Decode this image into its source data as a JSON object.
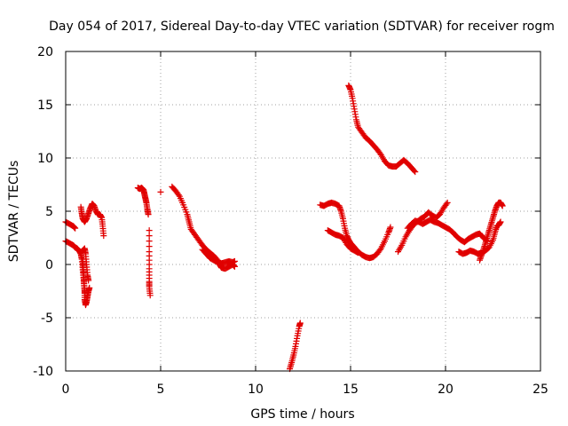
{
  "chart_data": {
    "type": "scatter",
    "title": "Day 054 of 2017, Sidereal Day-to-day VTEC variation (SDTVAR) for receiver rogm",
    "xlabel": "GPS time / hours",
    "ylabel": "SDTVAR / TECUs",
    "xlim": [
      0,
      25
    ],
    "ylim": [
      -10,
      20
    ],
    "x_ticks": [
      0,
      5,
      10,
      15,
      20,
      25
    ],
    "y_ticks": [
      -10,
      -5,
      0,
      5,
      10,
      15,
      20
    ],
    "x_tick_labels": [
      "0",
      "5",
      "10",
      "15",
      "20",
      "25"
    ],
    "y_tick_labels": [
      "-10",
      "-5",
      "0",
      "5",
      "10",
      "15",
      "20"
    ],
    "grid": true,
    "marker": "+",
    "series": [
      {
        "name": "SDTVAR",
        "color": "#e00000",
        "arcs": [
          [
            [
              0.0,
              4.0
            ],
            [
              0.2,
              3.8
            ],
            [
              0.4,
              3.6
            ],
            [
              0.5,
              3.4
            ]
          ],
          [
            [
              0.0,
              2.2
            ],
            [
              0.2,
              2.0
            ],
            [
              0.4,
              1.8
            ],
            [
              0.5,
              1.6
            ],
            [
              0.6,
              1.5
            ],
            [
              0.7,
              1.3
            ],
            [
              0.8,
              1.0
            ],
            [
              0.85,
              0.5
            ],
            [
              0.9,
              -0.5
            ],
            [
              0.95,
              -1.5
            ],
            [
              1.0,
              -2.5
            ],
            [
              1.0,
              -3.3
            ],
            [
              1.05,
              -3.8
            ],
            [
              1.1,
              -3.5
            ],
            [
              1.15,
              -3.0
            ],
            [
              1.2,
              -2.5
            ],
            [
              1.25,
              -2.2
            ]
          ],
          [
            [
              0.8,
              5.4
            ],
            [
              0.85,
              4.8
            ],
            [
              0.9,
              4.3
            ],
            [
              1.0,
              4.0
            ],
            [
              1.1,
              4.3
            ],
            [
              1.2,
              4.8
            ],
            [
              1.3,
              5.3
            ],
            [
              1.4,
              5.7
            ],
            [
              1.5,
              5.5
            ],
            [
              1.6,
              5.0
            ],
            [
              1.7,
              4.7
            ],
            [
              1.8,
              4.7
            ],
            [
              1.9,
              4.4
            ],
            [
              1.95,
              3.6
            ],
            [
              2.0,
              2.7
            ]
          ],
          [
            [
              0.9,
              1.3
            ],
            [
              1.0,
              1.5
            ],
            [
              1.05,
              1.0
            ],
            [
              1.1,
              0.0
            ],
            [
              1.15,
              -1.0
            ],
            [
              1.2,
              -1.5
            ]
          ],
          [
            [
              0.9,
              0.5
            ],
            [
              0.92,
              -0.3
            ],
            [
              0.95,
              -1.0
            ],
            [
              0.97,
              -1.8
            ],
            [
              1.0,
              -2.6
            ]
          ],
          [
            [
              3.8,
              7.2
            ],
            [
              3.9,
              7.1
            ],
            [
              4.0,
              7.2
            ],
            [
              4.1,
              7.0
            ],
            [
              4.15,
              6.6
            ],
            [
              4.2,
              6.2
            ],
            [
              4.25,
              5.8
            ],
            [
              4.3,
              5.2
            ],
            [
              4.35,
              4.7
            ]
          ],
          [
            [
              4.4,
              3.2
            ],
            [
              4.4,
              1.2
            ],
            [
              4.4,
              -0.4
            ],
            [
              4.4,
              -1.6
            ],
            [
              4.4,
              -2.1
            ],
            [
              4.45,
              -2.9
            ]
          ],
          [
            [
              5.0,
              6.8
            ]
          ],
          [
            [
              5.6,
              7.3
            ],
            [
              5.8,
              6.9
            ],
            [
              6.0,
              6.4
            ],
            [
              6.2,
              5.6
            ],
            [
              6.4,
              4.7
            ],
            [
              6.5,
              4.0
            ],
            [
              6.6,
              3.3
            ],
            [
              6.8,
              2.8
            ],
            [
              7.0,
              2.3
            ],
            [
              7.2,
              1.8
            ],
            [
              7.4,
              1.4
            ],
            [
              7.6,
              1.1
            ],
            [
              7.8,
              0.8
            ],
            [
              8.0,
              0.4
            ],
            [
              8.1,
              0.0
            ],
            [
              8.2,
              -0.3
            ],
            [
              8.4,
              -0.4
            ],
            [
              8.6,
              -0.2
            ],
            [
              8.8,
              0.0
            ],
            [
              8.9,
              -0.2
            ]
          ],
          [
            [
              7.2,
              1.4
            ],
            [
              7.4,
              1.0
            ],
            [
              7.6,
              0.6
            ],
            [
              7.8,
              0.4
            ],
            [
              8.0,
              0.2
            ],
            [
              8.2,
              0.1
            ],
            [
              8.4,
              0.2
            ],
            [
              8.6,
              0.3
            ],
            [
              8.8,
              0.2
            ],
            [
              8.9,
              0.3
            ]
          ],
          [
            [
              11.8,
              -9.8
            ],
            [
              11.9,
              -9.2
            ],
            [
              12.0,
              -8.5
            ],
            [
              12.1,
              -7.7
            ],
            [
              12.2,
              -6.7
            ],
            [
              12.3,
              -5.8
            ],
            [
              12.35,
              -5.5
            ]
          ],
          [
            [
              13.4,
              5.6
            ],
            [
              13.6,
              5.5
            ],
            [
              13.8,
              5.7
            ],
            [
              14.0,
              5.8
            ],
            [
              14.2,
              5.7
            ],
            [
              14.4,
              5.5
            ],
            [
              14.5,
              5.0
            ],
            [
              14.6,
              4.3
            ],
            [
              14.7,
              3.4
            ],
            [
              14.8,
              2.7
            ],
            [
              14.9,
              2.3
            ],
            [
              15.0,
              2.0
            ],
            [
              15.1,
              1.8
            ],
            [
              15.2,
              1.6
            ],
            [
              15.4,
              1.2
            ],
            [
              15.6,
              0.9
            ],
            [
              15.8,
              0.7
            ],
            [
              16.0,
              0.6
            ],
            [
              16.2,
              0.7
            ],
            [
              16.4,
              1.0
            ],
            [
              16.6,
              1.5
            ],
            [
              16.8,
              2.2
            ],
            [
              17.0,
              3.0
            ],
            [
              17.1,
              3.5
            ]
          ],
          [
            [
              13.8,
              3.2
            ],
            [
              14.0,
              3.0
            ],
            [
              14.2,
              2.8
            ],
            [
              14.4,
              2.7
            ],
            [
              14.6,
              2.5
            ],
            [
              14.8,
              1.9
            ],
            [
              15.0,
              1.5
            ],
            [
              15.2,
              1.3
            ],
            [
              15.4,
              1.1
            ]
          ],
          [
            [
              14.9,
              16.8
            ],
            [
              15.0,
              16.4
            ],
            [
              15.1,
              15.6
            ],
            [
              15.2,
              14.6
            ],
            [
              15.3,
              13.6
            ],
            [
              15.4,
              12.9
            ],
            [
              15.6,
              12.4
            ],
            [
              15.8,
              11.9
            ],
            [
              16.0,
              11.6
            ],
            [
              16.2,
              11.2
            ],
            [
              16.4,
              10.8
            ],
            [
              16.6,
              10.3
            ],
            [
              16.8,
              9.7
            ],
            [
              17.0,
              9.3
            ],
            [
              17.2,
              9.2
            ],
            [
              17.4,
              9.2
            ],
            [
              17.6,
              9.5
            ],
            [
              17.8,
              9.8
            ],
            [
              18.0,
              9.5
            ],
            [
              18.2,
              9.1
            ],
            [
              18.4,
              8.7
            ]
          ],
          [
            [
              17.5,
              1.2
            ],
            [
              17.7,
              1.8
            ],
            [
              17.9,
              2.6
            ],
            [
              18.1,
              3.2
            ],
            [
              18.3,
              3.7
            ],
            [
              18.5,
              4.0
            ],
            [
              18.7,
              4.3
            ],
            [
              18.9,
              4.5
            ],
            [
              19.1,
              4.9
            ],
            [
              19.3,
              4.6
            ],
            [
              19.5,
              4.4
            ],
            [
              19.7,
              4.7
            ],
            [
              19.9,
              5.3
            ],
            [
              20.1,
              5.8
            ]
          ],
          [
            [
              18.0,
              3.4
            ],
            [
              18.2,
              3.8
            ],
            [
              18.4,
              4.1
            ],
            [
              18.6,
              4.0
            ],
            [
              18.8,
              3.8
            ],
            [
              19.0,
              4.0
            ],
            [
              19.2,
              4.2
            ],
            [
              19.4,
              4.0
            ],
            [
              19.6,
              3.9
            ],
            [
              19.8,
              3.7
            ],
            [
              20.0,
              3.5
            ],
            [
              20.2,
              3.3
            ],
            [
              20.4,
              3.0
            ],
            [
              20.6,
              2.6
            ],
            [
              20.8,
              2.3
            ],
            [
              21.0,
              2.1
            ],
            [
              21.2,
              2.4
            ],
            [
              21.4,
              2.6
            ],
            [
              21.6,
              2.8
            ],
            [
              21.8,
              2.9
            ],
            [
              22.0,
              2.5
            ],
            [
              22.2,
              2.2
            ]
          ],
          [
            [
              20.7,
              1.2
            ],
            [
              20.9,
              1.0
            ],
            [
              21.1,
              1.1
            ],
            [
              21.3,
              1.3
            ],
            [
              21.5,
              1.2
            ],
            [
              21.7,
              1.0
            ],
            [
              21.9,
              1.1
            ],
            [
              22.1,
              1.3
            ],
            [
              22.3,
              1.6
            ],
            [
              22.5,
              2.3
            ],
            [
              22.6,
              3.0
            ],
            [
              22.7,
              3.6
            ],
            [
              22.8,
              3.7
            ],
            [
              22.9,
              4.0
            ]
          ],
          [
            [
              21.8,
              0.4
            ],
            [
              21.9,
              0.9
            ],
            [
              22.0,
              1.4
            ],
            [
              22.1,
              2.0
            ],
            [
              22.2,
              2.6
            ],
            [
              22.3,
              3.2
            ],
            [
              22.4,
              3.8
            ],
            [
              22.5,
              4.4
            ],
            [
              22.6,
              5.0
            ],
            [
              22.7,
              5.5
            ],
            [
              22.8,
              5.8
            ],
            [
              22.9,
              5.8
            ],
            [
              23.0,
              5.5
            ]
          ]
        ]
      }
    ]
  }
}
